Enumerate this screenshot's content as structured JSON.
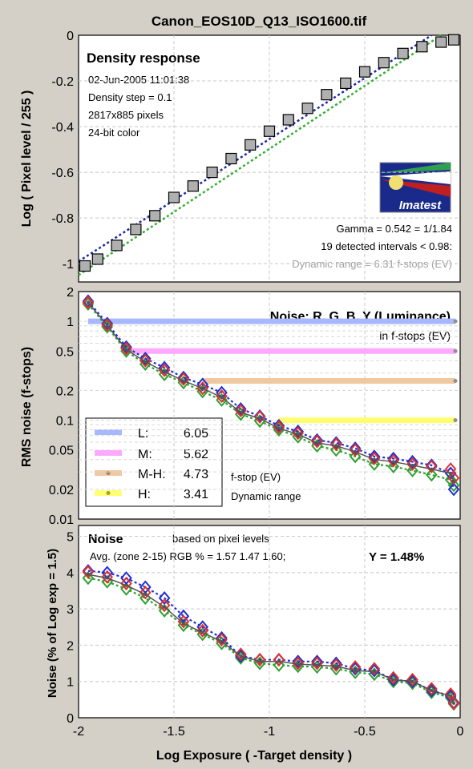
{
  "window_title": "Canon_EOS10D_Q13_ISO1600.tif",
  "colors": {
    "title": "#7a1a4a",
    "red": "#e03030",
    "green": "#30a030",
    "blue": "#2030d0",
    "gray": "#555555",
    "fit_blue": "#1a2aa0",
    "fit_green": "#30b030",
    "L": "#a8b8ff",
    "M": "#ffa8ff",
    "MH": "#f0c8a0",
    "H": "#ffff70"
  },
  "chart_data": [
    {
      "type": "scatter",
      "title": "Density response",
      "ylabel": "Log ( Pixel level / 255 )",
      "xlim": [
        -2,
        0
      ],
      "ylim": [
        -1.08,
        0
      ],
      "yticks": [
        "0",
        "-0.2",
        "-0.4",
        "-0.6",
        "-0.8",
        "-1"
      ],
      "grid": true,
      "info": [
        "02-Jun-2005 11:01:38",
        "Density step = 0.1",
        "2817x885 pixels",
        "24-bit color"
      ],
      "logo": "Imatest",
      "annotations": [
        "Gamma = 0.542 = 1/1.84",
        "19 detected intervals < 0.98:",
        "Dynamic range = 6.31 f-stops (EV)"
      ],
      "x": [
        -2.0,
        -1.9,
        -1.8,
        -1.7,
        -1.6,
        -1.5,
        -1.4,
        -1.3,
        -1.2,
        -1.1,
        -1.0,
        -0.9,
        -0.8,
        -0.7,
        -0.6,
        -0.5,
        -0.4,
        -0.3,
        -0.2,
        -0.1,
        0.0
      ],
      "y": [
        -1.01,
        -0.98,
        -0.92,
        -0.85,
        -0.79,
        -0.71,
        -0.66,
        -0.6,
        -0.54,
        -0.48,
        -0.42,
        -0.37,
        -0.32,
        -0.26,
        -0.21,
        -0.16,
        -0.12,
        -0.08,
        -0.05,
        -0.03,
        -0.02
      ],
      "fit_lines": [
        {
          "color": "blue",
          "x": [
            -2.0,
            -0.15
          ],
          "y": [
            -0.99,
            0.0
          ]
        },
        {
          "color": "green",
          "x": [
            -2.0,
            -0.1
          ],
          "y": [
            -1.05,
            0.0
          ]
        }
      ]
    },
    {
      "type": "line",
      "title": "Noise: R, G, B, Y (Luminance)",
      "subtitle": "in f-stops (EV)",
      "ylabel": "RMS noise (f-stops)",
      "yscale": "log",
      "ylim": [
        0.01,
        2
      ],
      "yticks": [
        "2",
        "1",
        "0.5",
        "0.2",
        "0.1",
        "0.05",
        "0.02",
        "0.01"
      ],
      "xlim": [
        -2,
        0
      ],
      "x": [
        -1.95,
        -1.85,
        -1.75,
        -1.65,
        -1.55,
        -1.45,
        -1.35,
        -1.25,
        -1.15,
        -1.05,
        -0.95,
        -0.85,
        -0.75,
        -0.65,
        -0.55,
        -0.45,
        -0.35,
        -0.25,
        -0.15,
        -0.05,
        0.0
      ],
      "series": [
        {
          "name": "R",
          "color": "red",
          "values": [
            1.55,
            0.92,
            0.53,
            0.4,
            0.32,
            0.26,
            0.21,
            0.175,
            0.125,
            0.108,
            0.085,
            0.074,
            0.061,
            0.057,
            0.05,
            0.041,
            0.039,
            0.036,
            0.034,
            0.032,
            0.026
          ]
        },
        {
          "name": "G",
          "color": "green",
          "values": [
            1.5,
            0.88,
            0.5,
            0.37,
            0.29,
            0.24,
            0.195,
            0.16,
            0.115,
            0.098,
            0.08,
            0.068,
            0.055,
            0.05,
            0.043,
            0.036,
            0.034,
            0.031,
            0.028,
            0.025,
            0.022
          ]
        },
        {
          "name": "B",
          "color": "blue",
          "values": [
            1.6,
            0.95,
            0.55,
            0.42,
            0.34,
            0.27,
            0.23,
            0.19,
            0.13,
            0.11,
            0.088,
            0.077,
            0.063,
            0.059,
            0.052,
            0.043,
            0.041,
            0.038,
            0.035,
            0.029,
            0.02
          ]
        },
        {
          "name": "Y",
          "color": "gray",
          "values": [
            1.55,
            0.91,
            0.52,
            0.39,
            0.31,
            0.25,
            0.21,
            0.17,
            0.12,
            0.104,
            0.083,
            0.072,
            0.059,
            0.055,
            0.048,
            0.04,
            0.038,
            0.035,
            0.032,
            0.029,
            0.024
          ]
        }
      ],
      "dynamic_range_lines": [
        {
          "key": "L",
          "y": 1.0,
          "x_start": -1.95
        },
        {
          "key": "M",
          "y": 0.5,
          "x_start": -1.75
        },
        {
          "key": "MH",
          "y": 0.25,
          "x_start": -1.35
        },
        {
          "key": "H",
          "y": 0.1,
          "x_start": -0.95
        }
      ],
      "legend": {
        "placement": "bottom-left",
        "entries": [
          {
            "key": "L",
            "label": "L:",
            "value": "6.05"
          },
          {
            "key": "M",
            "label": "M:",
            "value": "5.62"
          },
          {
            "key": "MH",
            "label": "M-H:",
            "value": "4.73"
          },
          {
            "key": "H",
            "label": "H:",
            "value": "3.41"
          }
        ],
        "caption": [
          "f-stop (EV)",
          "Dynamic range"
        ]
      }
    },
    {
      "type": "line",
      "title": "Noise",
      "subtitle": "based on pixel levels",
      "summary": "Avg. (zone 2-15) RGB % = 1.57  1.47  1.60;",
      "summary_y": "Y = 1.48%",
      "ylabel": "Noise (% of Log exp = 1.5)",
      "xlabel": "Log Exposure ( -Target density )",
      "xlim": [
        -2,
        0
      ],
      "ylim": [
        0,
        5.3
      ],
      "yticks": [
        "0",
        "1",
        "2",
        "3",
        "4",
        "5"
      ],
      "xticks": [
        "-2",
        "-1.5",
        "-1",
        "-0.5",
        "0"
      ],
      "x": [
        -1.95,
        -1.85,
        -1.75,
        -1.65,
        -1.55,
        -1.45,
        -1.35,
        -1.25,
        -1.15,
        -1.05,
        -0.95,
        -0.85,
        -0.75,
        -0.65,
        -0.55,
        -0.45,
        -0.35,
        -0.25,
        -0.15,
        -0.05,
        0.0
      ],
      "series": [
        {
          "name": "R",
          "color": "red",
          "values": [
            4.02,
            3.88,
            3.7,
            3.45,
            3.1,
            2.65,
            2.4,
            2.15,
            1.75,
            1.6,
            1.6,
            1.5,
            1.5,
            1.45,
            1.4,
            1.35,
            1.1,
            1.05,
            0.8,
            0.65,
            0.4
          ]
        },
        {
          "name": "G",
          "color": "green",
          "values": [
            3.85,
            3.75,
            3.55,
            3.3,
            2.95,
            2.55,
            2.3,
            2.05,
            1.65,
            1.5,
            1.45,
            1.42,
            1.4,
            1.35,
            1.25,
            1.2,
            1.0,
            0.95,
            0.7,
            0.55,
            0.38
          ]
        },
        {
          "name": "B",
          "color": "blue",
          "values": [
            4.05,
            4.0,
            3.85,
            3.6,
            3.3,
            2.8,
            2.5,
            2.2,
            1.7,
            1.6,
            1.6,
            1.55,
            1.55,
            1.5,
            1.35,
            1.3,
            1.05,
            1.0,
            0.75,
            0.6,
            0.42
          ]
        },
        {
          "name": "Y",
          "color": "gray",
          "values": [
            3.95,
            3.85,
            3.65,
            3.4,
            3.05,
            2.6,
            2.35,
            2.1,
            1.7,
            1.55,
            1.55,
            1.48,
            1.45,
            1.42,
            1.3,
            1.27,
            1.05,
            1.0,
            0.75,
            0.6,
            0.4
          ]
        }
      ]
    }
  ]
}
